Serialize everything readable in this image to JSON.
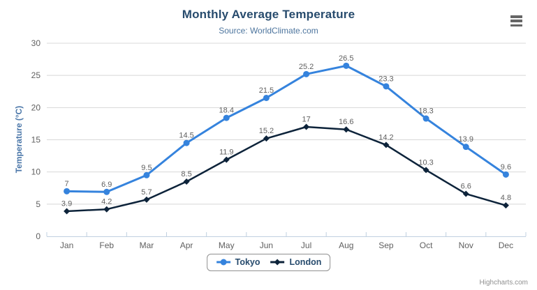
{
  "chart_data": {
    "type": "line",
    "title": "Monthly Average Temperature",
    "subtitle": "Source: WorldClimate.com",
    "xlabel": "",
    "ylabel": "Temperature (°C)",
    "categories": [
      "Jan",
      "Feb",
      "Mar",
      "Apr",
      "May",
      "Jun",
      "Jul",
      "Aug",
      "Sep",
      "Oct",
      "Nov",
      "Dec"
    ],
    "series": [
      {
        "name": "Tokyo",
        "marker": "circle",
        "color": "#3583dd",
        "values": [
          7,
          6.9,
          9.5,
          14.5,
          18.4,
          21.5,
          25.2,
          26.5,
          23.3,
          18.3,
          13.9,
          9.6
        ]
      },
      {
        "name": "London",
        "marker": "diamond",
        "color": "#0d233a",
        "values": [
          3.9,
          4.2,
          5.7,
          8.5,
          11.9,
          15.2,
          17,
          16.6,
          14.2,
          10.3,
          6.6,
          4.8
        ]
      }
    ],
    "ylim": [
      0,
      30
    ],
    "ytick_interval": 5,
    "grid": true,
    "data_labels": true,
    "legend_position": "bottom"
  },
  "credits": {
    "label": "Highcharts.com"
  },
  "icons": {
    "context_menu": "hamburger-icon"
  },
  "colors": {
    "title": "#274b6d",
    "subtitle": "#4d759e",
    "axis_title": "#4a76a8",
    "axis_label": "#606060",
    "data_label": "#606060",
    "grid": "#d8d8d8",
    "axis_line": "#c0d0e0",
    "tick": "#c0d0e0",
    "legend_text": "#274b6d",
    "legend_border": "#909090",
    "credits": "#909090",
    "menu_icon": "#666666",
    "background": "#ffffff"
  }
}
